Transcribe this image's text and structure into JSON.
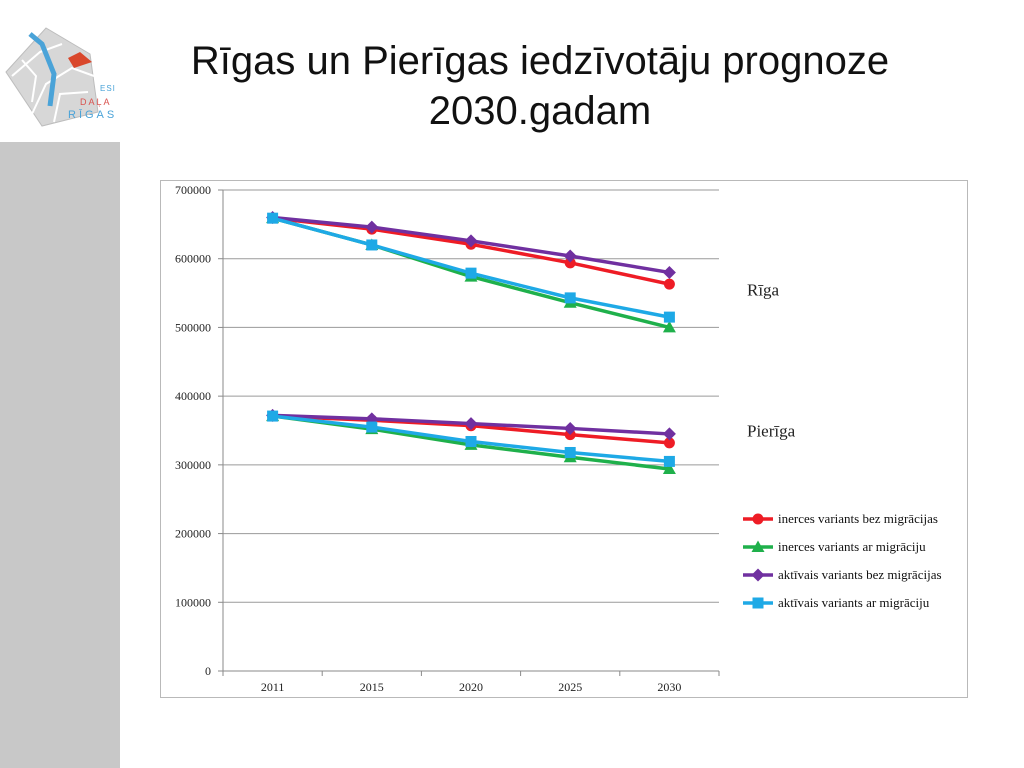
{
  "slide": {
    "title_line1": "Rīgas un Pierīgas iedzīvotāju prognoze",
    "title_line2": "2030.gadam",
    "logo": {
      "line1": "ESI",
      "line2": "DAĻA",
      "line3": "RĪGAS"
    }
  },
  "chart_data": {
    "type": "line",
    "title": "",
    "xlabel": "",
    "ylabel": "",
    "categories": [
      "2011",
      "2015",
      "2020",
      "2025",
      "2030"
    ],
    "ylim": [
      0,
      700000
    ],
    "yticks": [
      0,
      100000,
      200000,
      300000,
      400000,
      500000,
      600000,
      700000
    ],
    "ytick_labels": [
      "0",
      "100000",
      "200000",
      "300000",
      "400000",
      "500000",
      "600000",
      "700000"
    ],
    "grid": true,
    "legend_position": "right",
    "region_labels": [
      {
        "text": "Rīga",
        "near_value": 555000
      },
      {
        "text": "Pierīga",
        "near_value": 350000
      }
    ],
    "series": [
      {
        "name": "inerces variants bez migrācijas",
        "color": "#ee1c25",
        "marker": "circle",
        "groups": [
          {
            "region": "Rīga",
            "values": [
              659000,
              643000,
              621000,
              594000,
              563000
            ]
          },
          {
            "region": "Pierīga",
            "values": [
              371000,
              365000,
              357000,
              344000,
              332000
            ]
          }
        ]
      },
      {
        "name": "inerces variants ar migrāciju",
        "color": "#1fb04b",
        "marker": "triangle",
        "groups": [
          {
            "region": "Rīga",
            "values": [
              659000,
              620000,
              574000,
              536000,
              500000
            ]
          },
          {
            "region": "Pierīga",
            "values": [
              371000,
              352000,
              329000,
              311000,
              294000
            ]
          }
        ]
      },
      {
        "name": "aktīvais variants bez migrācijas",
        "color": "#7030a0",
        "marker": "diamond",
        "groups": [
          {
            "region": "Rīga",
            "values": [
              660000,
              646000,
              626000,
              604000,
              580000
            ]
          },
          {
            "region": "Pierīga",
            "values": [
              372000,
              367000,
              360000,
              353000,
              345000
            ]
          }
        ]
      },
      {
        "name": "aktīvais variants ar migrāciju",
        "color": "#1ea9e6",
        "marker": "square",
        "groups": [
          {
            "region": "Rīga",
            "values": [
              659000,
              620000,
              579000,
              543000,
              515000
            ]
          },
          {
            "region": "Pierīga",
            "values": [
              371000,
              355000,
              334000,
              318000,
              305000
            ]
          }
        ]
      }
    ]
  }
}
